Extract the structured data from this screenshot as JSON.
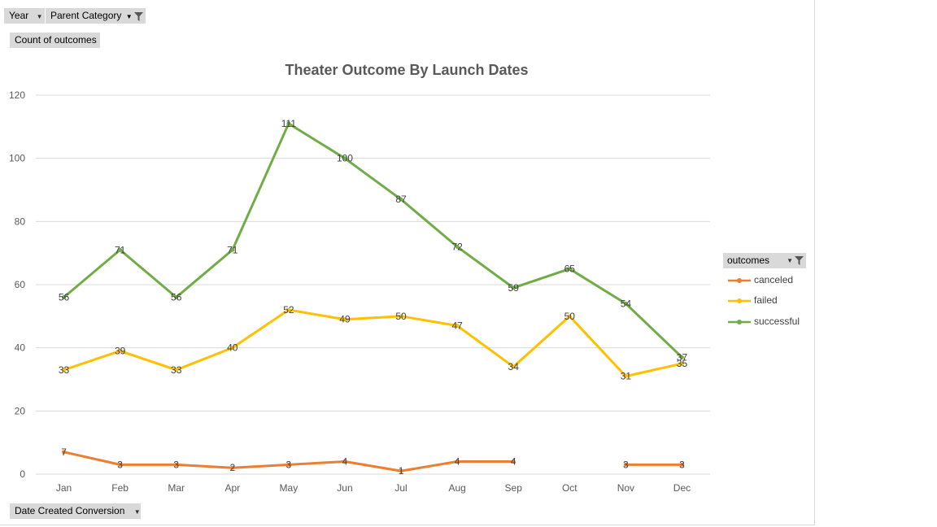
{
  "filters": {
    "year_label": "Year",
    "parent_category_label": "Parent Category",
    "value_field_label": "Count of outcomes",
    "axis_field_label": "Date Created Conversion"
  },
  "legend": {
    "title": "outcomes",
    "items": [
      "canceled",
      "failed",
      "successful"
    ]
  },
  "colors": {
    "canceled": "#ED7D31",
    "failed": "#FFC000",
    "successful": "#70AD47",
    "gridline": "#d9d9d9",
    "text": "#595959"
  },
  "chart_data": {
    "type": "line",
    "title": "Theater Outcome By Launch Dates",
    "xlabel": "",
    "ylabel": "",
    "categories": [
      "Jan",
      "Feb",
      "Mar",
      "Apr",
      "May",
      "Jun",
      "Jul",
      "Aug",
      "Sep",
      "Oct",
      "Nov",
      "Dec"
    ],
    "ylim": [
      0,
      120
    ],
    "yticks": [
      0,
      20,
      40,
      60,
      80,
      100,
      120
    ],
    "grid": true,
    "legend_position": "right",
    "series": [
      {
        "name": "canceled",
        "values": [
          7,
          3,
          3,
          2,
          3,
          4,
          1,
          4,
          4,
          null,
          3,
          3
        ]
      },
      {
        "name": "failed",
        "values": [
          33,
          39,
          33,
          40,
          52,
          49,
          50,
          47,
          34,
          50,
          31,
          35
        ]
      },
      {
        "name": "successful",
        "values": [
          56,
          71,
          56,
          71,
          111,
          100,
          87,
          72,
          59,
          65,
          54,
          37
        ]
      }
    ]
  }
}
